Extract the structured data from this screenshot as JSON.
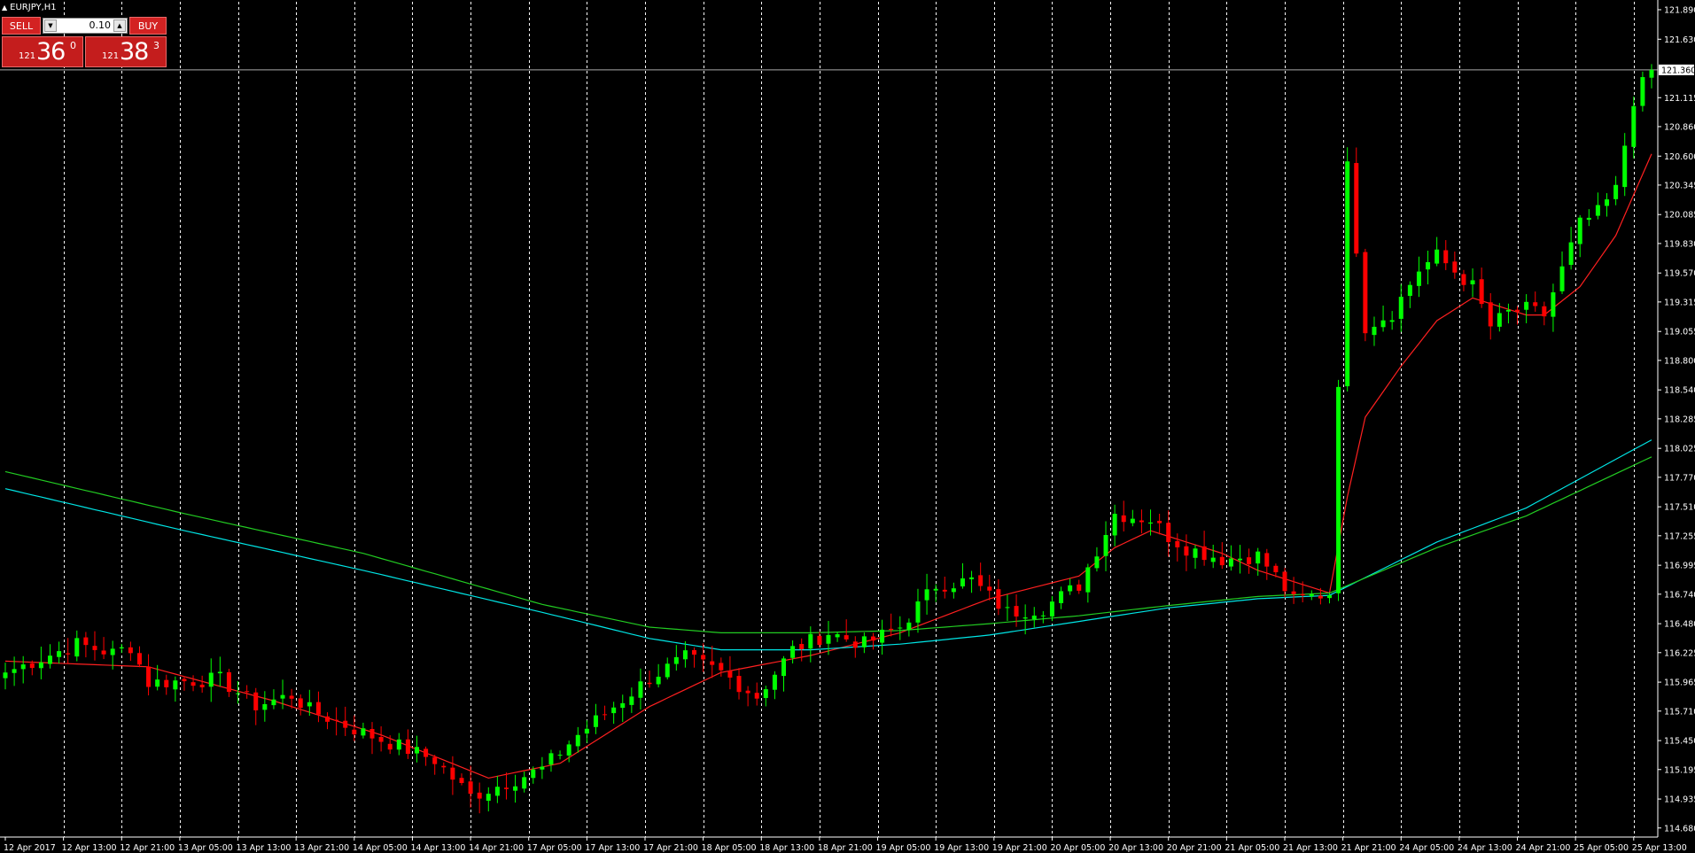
{
  "window": {
    "title": "EURJPY,H1"
  },
  "trade_panel": {
    "sell_label": "SELL",
    "buy_label": "BUY",
    "lot": "0.10",
    "sell_price": {
      "prefix": "121",
      "big": "36",
      "sup": "0"
    },
    "buy_price": {
      "prefix": "121",
      "big": "38",
      "sup": "3"
    }
  },
  "chart_data": {
    "type": "candlestick",
    "symbol": "EURJPY",
    "timeframe": "H1",
    "grid": "vertical dashed lines at each x-axis label",
    "y_ticks": [
      "121.890",
      "121.630",
      "121.115",
      "120.860",
      "120.600",
      "120.345",
      "120.085",
      "119.830",
      "119.570",
      "119.315",
      "119.055",
      "118.800",
      "118.540",
      "118.285",
      "118.025",
      "117.770",
      "117.510",
      "117.255",
      "116.995",
      "116.740",
      "116.480",
      "116.225",
      "115.965",
      "115.710",
      "115.450",
      "115.195",
      "114.935",
      "114.680"
    ],
    "ylim": [
      114.6,
      121.96
    ],
    "current_price": "121.360",
    "x_ticks": [
      "12 Apr 2017",
      "12 Apr 13:00",
      "12 Apr 21:00",
      "13 Apr 05:00",
      "13 Apr 13:00",
      "13 Apr 21:00",
      "14 Apr 05:00",
      "14 Apr 13:00",
      "14 Apr 21:00",
      "17 Apr 05:00",
      "17 Apr 13:00",
      "17 Apr 21:00",
      "18 Apr 05:00",
      "18 Apr 13:00",
      "18 Apr 21:00",
      "19 Apr 05:00",
      "19 Apr 13:00",
      "19 Apr 21:00",
      "20 Apr 05:00",
      "20 Apr 13:00",
      "20 Apr 21:00",
      "21 Apr 05:00",
      "21 Apr 13:00",
      "21 Apr 21:00",
      "24 Apr 05:00",
      "24 Apr 13:00",
      "24 Apr 21:00",
      "25 Apr 05:00",
      "25 Apr 13:00"
    ],
    "candle_colors": {
      "up": "#00ff00",
      "down": "#ff0000"
    },
    "close_path": [
      [
        0,
        116.05
      ],
      [
        8,
        116.3
      ],
      [
        12,
        116.22
      ],
      [
        14,
        116.28
      ],
      [
        16,
        115.96
      ],
      [
        24,
        115.99
      ],
      [
        28,
        115.76
      ],
      [
        32,
        115.85
      ],
      [
        34,
        115.72
      ],
      [
        40,
        115.52
      ],
      [
        48,
        115.28
      ],
      [
        52,
        114.96
      ],
      [
        56,
        115.08
      ],
      [
        60,
        115.2
      ],
      [
        64,
        115.5
      ],
      [
        72,
        116.0
      ],
      [
        76,
        116.18
      ],
      [
        80,
        116.05
      ],
      [
        84,
        115.84
      ],
      [
        88,
        116.25
      ],
      [
        92,
        116.4
      ],
      [
        96,
        116.3
      ],
      [
        100,
        116.45
      ],
      [
        104,
        116.82
      ],
      [
        108,
        116.86
      ],
      [
        112,
        116.58
      ],
      [
        116,
        116.62
      ],
      [
        120,
        116.82
      ],
      [
        124,
        117.45
      ],
      [
        128,
        117.4
      ],
      [
        130,
        117.25
      ],
      [
        132,
        117.15
      ],
      [
        136,
        117.05
      ],
      [
        140,
        117.08
      ],
      [
        142,
        116.9
      ],
      [
        144,
        116.68
      ],
      [
        146,
        116.72
      ],
      [
        148,
        116.75
      ],
      [
        150,
        120.5
      ],
      [
        152,
        119.1
      ],
      [
        155,
        119.22
      ],
      [
        158,
        119.6
      ],
      [
        160,
        119.72
      ],
      [
        164,
        119.45
      ],
      [
        166,
        119.1
      ],
      [
        168,
        119.22
      ],
      [
        170,
        119.25
      ],
      [
        172,
        119.2
      ],
      [
        174,
        119.6
      ],
      [
        176,
        120.0
      ],
      [
        178,
        120.1
      ],
      [
        180,
        120.3
      ],
      [
        182,
        121.1
      ],
      [
        184,
        121.36
      ]
    ],
    "series": [
      {
        "name": "",
        "color": "#ff2020",
        "values": [
          [
            0,
            116.15
          ],
          [
            16,
            116.1
          ],
          [
            30,
            115.8
          ],
          [
            42,
            115.5
          ],
          [
            54,
            115.12
          ],
          [
            62,
            115.25
          ],
          [
            72,
            115.75
          ],
          [
            80,
            116.05
          ],
          [
            90,
            116.2
          ],
          [
            100,
            116.4
          ],
          [
            110,
            116.7
          ],
          [
            120,
            116.9
          ],
          [
            124,
            117.15
          ],
          [
            128,
            117.3
          ],
          [
            136,
            117.1
          ],
          [
            140,
            116.95
          ],
          [
            148,
            116.75
          ],
          [
            150,
            117.6
          ],
          [
            152,
            118.3
          ],
          [
            156,
            118.75
          ],
          [
            160,
            119.15
          ],
          [
            164,
            119.35
          ],
          [
            166,
            119.3
          ],
          [
            170,
            119.2
          ],
          [
            172,
            119.2
          ],
          [
            176,
            119.45
          ],
          [
            180,
            119.9
          ],
          [
            184,
            120.62
          ]
        ]
      },
      {
        "name": "",
        "color": "#00e5e5",
        "values": [
          [
            0,
            117.67
          ],
          [
            20,
            117.3
          ],
          [
            40,
            116.95
          ],
          [
            60,
            116.58
          ],
          [
            72,
            116.35
          ],
          [
            80,
            116.25
          ],
          [
            90,
            116.25
          ],
          [
            100,
            116.3
          ],
          [
            110,
            116.38
          ],
          [
            120,
            116.5
          ],
          [
            130,
            116.62
          ],
          [
            140,
            116.7
          ],
          [
            148,
            116.73
          ],
          [
            160,
            117.2
          ],
          [
            170,
            117.5
          ],
          [
            184,
            118.1
          ]
        ]
      },
      {
        "name": "",
        "color": "#22cc22",
        "values": [
          [
            0,
            117.82
          ],
          [
            20,
            117.45
          ],
          [
            40,
            117.1
          ],
          [
            60,
            116.65
          ],
          [
            72,
            116.45
          ],
          [
            80,
            116.4
          ],
          [
            90,
            116.4
          ],
          [
            100,
            116.42
          ],
          [
            110,
            116.48
          ],
          [
            120,
            116.55
          ],
          [
            130,
            116.64
          ],
          [
            140,
            116.72
          ],
          [
            148,
            116.75
          ],
          [
            160,
            117.15
          ],
          [
            170,
            117.43
          ],
          [
            184,
            117.95
          ]
        ]
      }
    ]
  }
}
